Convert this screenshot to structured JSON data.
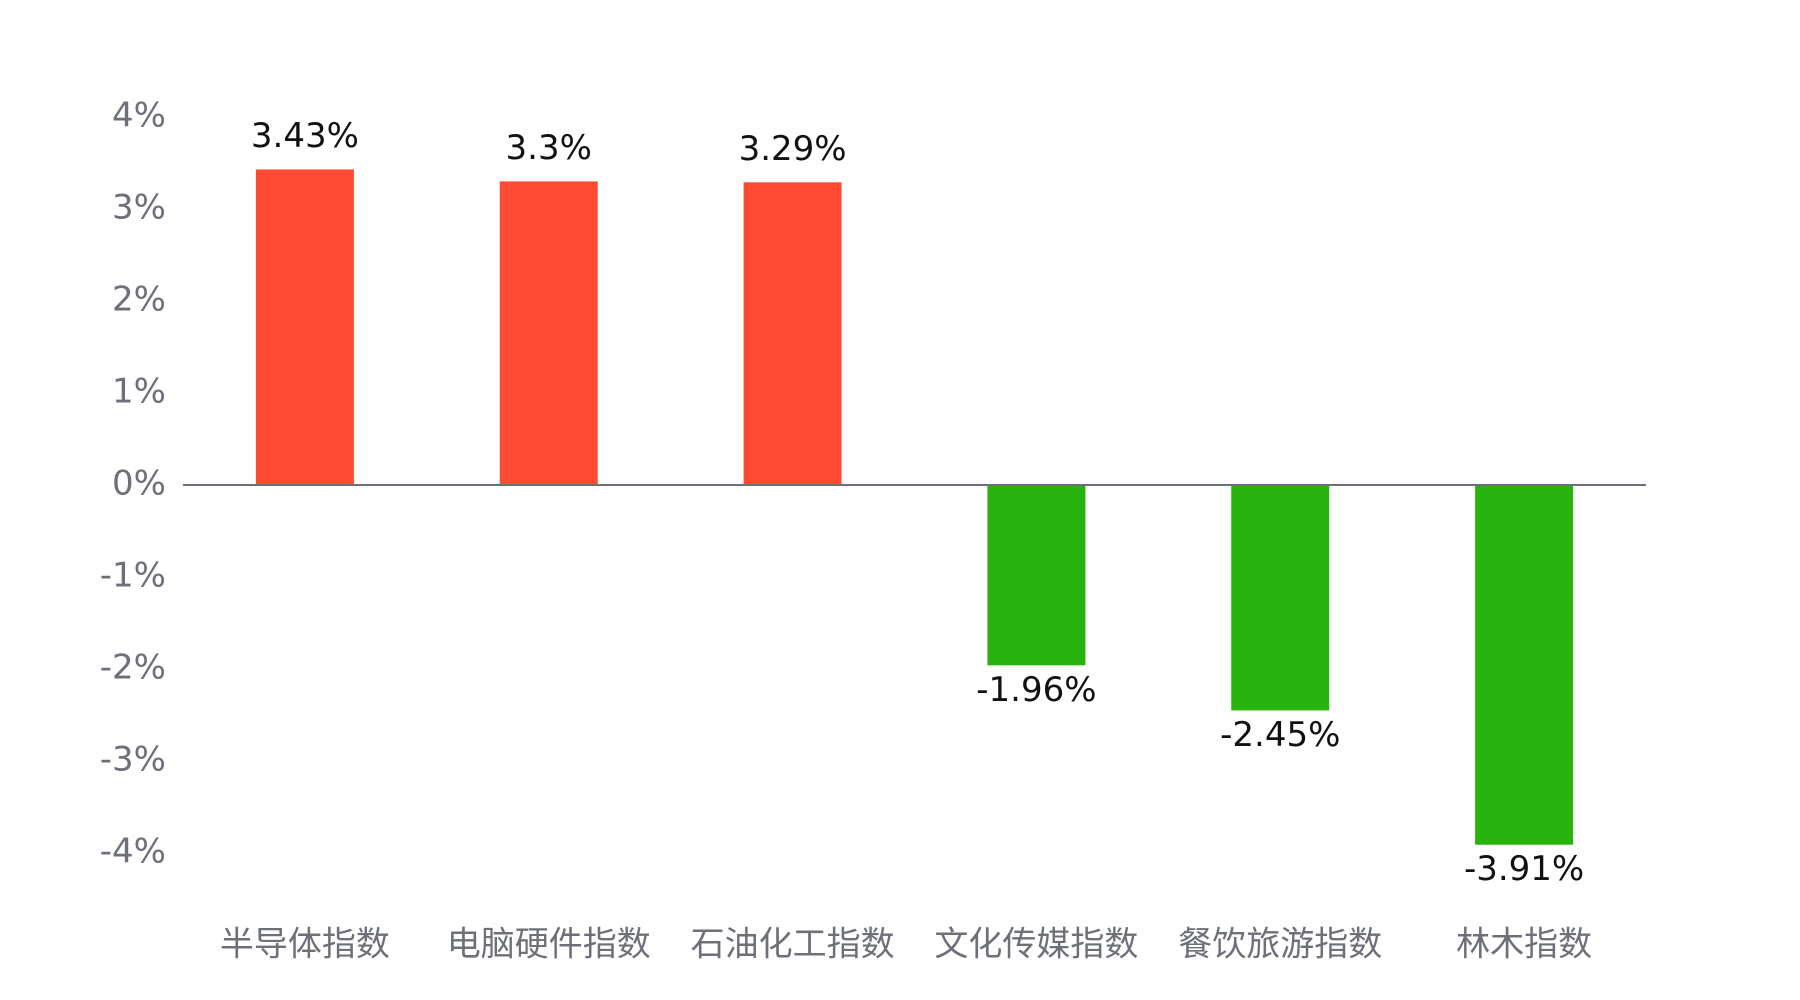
{
  "chart_data": {
    "type": "bar",
    "categories": [
      "半导体指数",
      "电脑硬件指数",
      "石油化工指数",
      "文化传媒指数",
      "餐饮旅游指数",
      "林木指数"
    ],
    "values": [
      3.43,
      3.3,
      3.29,
      -1.96,
      -2.45,
      -3.91
    ],
    "value_labels": [
      "3.43%",
      "3.3%",
      "3.29%",
      "-1.96%",
      "-2.45%",
      "-3.91%"
    ],
    "colors": [
      "#ff4b33",
      "#ff4b33",
      "#ff4b33",
      "#28b30f",
      "#28b30f",
      "#28b30f"
    ],
    "ylim": [
      -4,
      4
    ],
    "yticks": [
      {
        "value": 4,
        "label": "4%"
      },
      {
        "value": 3,
        "label": "3%"
      },
      {
        "value": 2,
        "label": "2%"
      },
      {
        "value": 1,
        "label": "1%"
      },
      {
        "value": 0,
        "label": "0%"
      },
      {
        "value": -1,
        "label": "-1%"
      },
      {
        "value": -2,
        "label": "-2%"
      },
      {
        "value": -3,
        "label": "-3%"
      },
      {
        "value": -4,
        "label": "-4%"
      }
    ],
    "grid": false
  }
}
